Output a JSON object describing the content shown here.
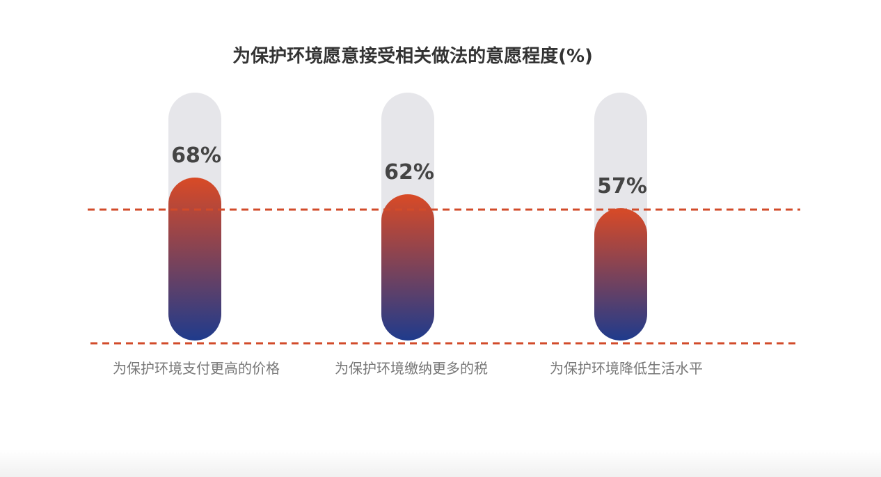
{
  "chart_data": {
    "type": "bar",
    "title": "为保护环境愿意接受相关做法的意愿程度(%)",
    "categories": [
      "为保护环境支付更高的价格",
      "为保护环境缴纳更多的税",
      "为保护环境降低生活水平"
    ],
    "values": [
      68,
      62,
      57
    ],
    "value_labels": [
      "68%",
      "62%",
      "57%"
    ],
    "ylim": [
      0,
      100
    ],
    "grid": false,
    "colors": {
      "bar_top": "#d94a26",
      "bar_bottom": "#1f3b8c",
      "track": "#e6e6ea",
      "reference_line": "#d24b2a",
      "title": "#333333",
      "value_label": "#444444",
      "category_label": "#777777"
    }
  }
}
